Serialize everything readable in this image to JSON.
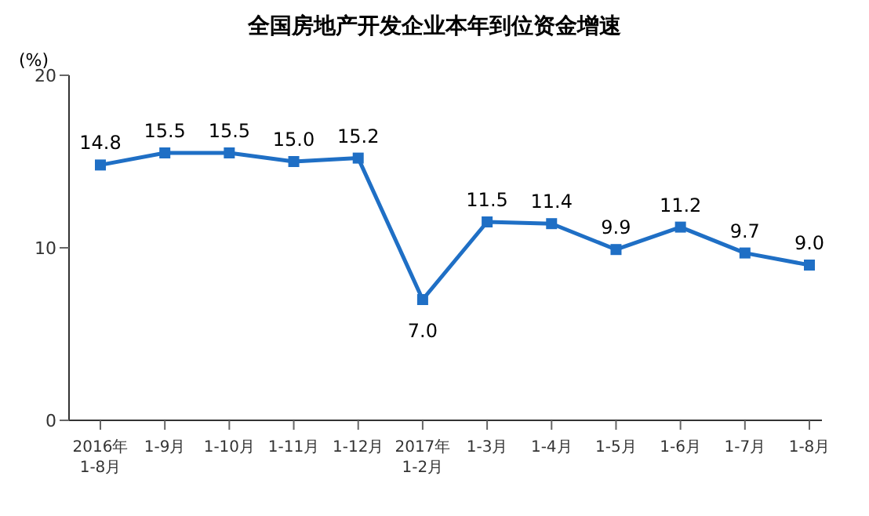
{
  "chart_data": {
    "type": "line",
    "title": "全国房地产开发企业本年到位资金增速",
    "ylabel": "(%)",
    "categories": [
      "2016年\n1-8月",
      "1-9月",
      "1-10月",
      "1-11月",
      "1-12月",
      "2017年\n1-2月",
      "1-3月",
      "1-4月",
      "1-5月",
      "1-6月",
      "1-7月",
      "1-8月"
    ],
    "series": [
      {
        "color": "#1f6fc5",
        "values": [
          14.8,
          15.5,
          15.5,
          15.0,
          15.2,
          7.0,
          11.5,
          11.4,
          9.9,
          11.2,
          9.7,
          9.0
        ],
        "value_labels": [
          "14.8",
          "15.5",
          "15.5",
          "15.0",
          "15.2",
          "7.0",
          "11.5",
          "11.4",
          "9.9",
          "11.2",
          "9.7",
          "9.0"
        ]
      }
    ],
    "ylim": [
      0,
      20
    ],
    "yticks": [
      0,
      10,
      20
    ],
    "marker": "square",
    "line_style": "solid"
  }
}
